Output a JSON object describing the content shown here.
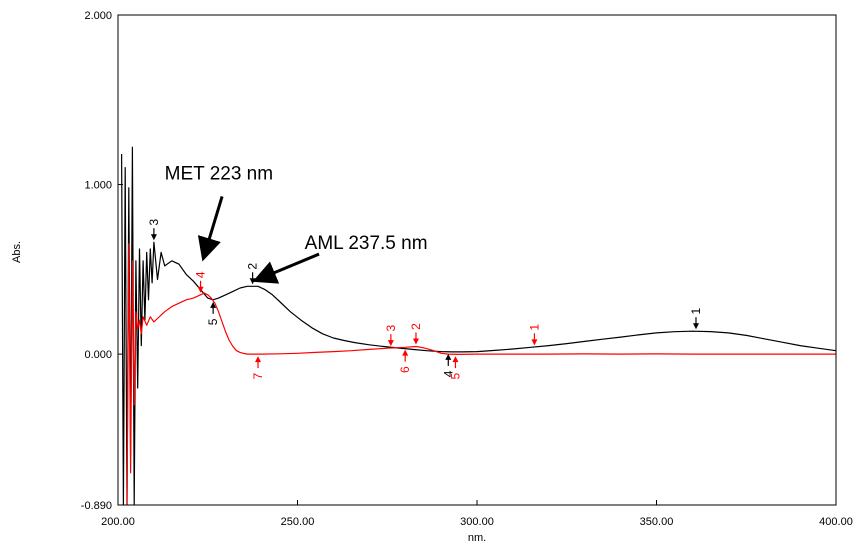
{
  "chart_data": {
    "type": "line",
    "xlabel": "nm.",
    "ylabel": "Abs.",
    "xlim": [
      200,
      400
    ],
    "ylim": [
      -0.89,
      2.0
    ],
    "x_ticks": [
      "200.00",
      "250.00",
      "300.00",
      "350.00",
      "400.00"
    ],
    "y_ticks": [
      {
        "value": 2.0,
        "label": "2.000"
      },
      {
        "value": 1.0,
        "label": "1.000"
      },
      {
        "value": 0.0,
        "label": "0.000"
      },
      {
        "value": -0.89,
        "label": "-0.890"
      }
    ],
    "grid": false,
    "legend": "none",
    "series": [
      {
        "color": "#000000",
        "x": [
          201,
          201.5,
          202,
          202.5,
          203,
          203.5,
          204,
          204.5,
          205,
          205.5,
          206,
          206.5,
          207,
          207.5,
          208,
          208.5,
          209,
          209.5,
          210,
          211,
          212,
          213,
          215,
          217,
          219,
          221,
          223,
          225,
          226.5,
          228,
          230,
          232,
          234,
          236,
          237.5,
          239,
          241,
          243,
          245,
          248,
          251,
          254,
          257,
          260,
          263,
          266,
          270,
          274,
          278,
          282,
          286,
          290,
          293,
          296,
          300,
          305,
          310,
          315,
          320,
          325,
          330,
          335,
          340,
          345,
          350,
          355,
          360,
          365,
          370,
          375,
          380,
          385,
          390,
          395,
          400
        ],
        "y": [
          1.18,
          -0.89,
          1.1,
          -0.89,
          0.98,
          -0.6,
          1.22,
          -0.89,
          0.55,
          -0.2,
          0.62,
          0.05,
          0.55,
          0.2,
          0.6,
          0.32,
          0.62,
          0.42,
          0.66,
          0.44,
          0.6,
          0.52,
          0.55,
          0.53,
          0.47,
          0.43,
          0.38,
          0.33,
          0.32,
          0.33,
          0.35,
          0.37,
          0.39,
          0.4,
          0.4,
          0.4,
          0.38,
          0.35,
          0.31,
          0.25,
          0.2,
          0.155,
          0.12,
          0.095,
          0.08,
          0.068,
          0.055,
          0.045,
          0.036,
          0.028,
          0.02,
          0.015,
          0.013,
          0.013,
          0.015,
          0.022,
          0.03,
          0.04,
          0.05,
          0.062,
          0.075,
          0.088,
          0.1,
          0.113,
          0.125,
          0.132,
          0.135,
          0.133,
          0.125,
          0.11,
          0.09,
          0.07,
          0.05,
          0.035,
          0.02
        ]
      },
      {
        "color": "#ff0000",
        "x": [
          202.5,
          203,
          203.5,
          204,
          204.5,
          205,
          205.5,
          206,
          206.5,
          207,
          208,
          209,
          210,
          211,
          212,
          213,
          215,
          217,
          219,
          221,
          223,
          224,
          225,
          226,
          227,
          228,
          229,
          230,
          231,
          232,
          233,
          234,
          235,
          236,
          238,
          240,
          245,
          250,
          255,
          260,
          265,
          270,
          275,
          280,
          283,
          285,
          288,
          290,
          292,
          295,
          300,
          310,
          320,
          330,
          340,
          350,
          360,
          370,
          380,
          390,
          400
        ],
        "y": [
          -0.89,
          0.65,
          -0.7,
          0.55,
          -0.3,
          0.25,
          0.15,
          0.2,
          0.12,
          0.22,
          0.17,
          0.22,
          0.19,
          0.21,
          0.23,
          0.25,
          0.28,
          0.3,
          0.32,
          0.33,
          0.35,
          0.36,
          0.35,
          0.33,
          0.3,
          0.25,
          0.19,
          0.13,
          0.08,
          0.045,
          0.02,
          0.01,
          0.004,
          0.0,
          0.0,
          0.0,
          0.002,
          0.005,
          0.01,
          0.015,
          0.02,
          0.028,
          0.035,
          0.04,
          0.045,
          0.038,
          0.02,
          0.005,
          0.0,
          -0.002,
          0.0,
          0.0,
          0.0,
          0.001,
          0.0,
          0.001,
          0.0,
          0.0,
          0.0,
          0.0,
          0.0
        ]
      }
    ],
    "peak_labels": [
      {
        "label": "1",
        "x": 361,
        "y": 0.135,
        "color": "#000000",
        "dir": "above"
      },
      {
        "label": "2",
        "x": 237.5,
        "y": 0.4,
        "color": "#000000",
        "dir": "above"
      },
      {
        "label": "3",
        "x": 210,
        "y": 0.66,
        "color": "#000000",
        "dir": "above"
      },
      {
        "label": "4",
        "x": 292,
        "y": 0.013,
        "color": "#000000",
        "dir": "below"
      },
      {
        "label": "5",
        "x": 226.5,
        "y": 0.32,
        "color": "#000000",
        "dir": "below"
      },
      {
        "label": "1",
        "x": 316,
        "y": 0.04,
        "color": "#ff0000",
        "dir": "above"
      },
      {
        "label": "2",
        "x": 283,
        "y": 0.045,
        "color": "#ff0000",
        "dir": "above"
      },
      {
        "label": "3",
        "x": 276,
        "y": 0.035,
        "color": "#ff0000",
        "dir": "above"
      },
      {
        "label": "4",
        "x": 223,
        "y": 0.35,
        "color": "#ff0000",
        "dir": "above"
      },
      {
        "label": "5",
        "x": 294,
        "y": 0.0,
        "color": "#ff0000",
        "dir": "below"
      },
      {
        "label": "6",
        "x": 280,
        "y": 0.038,
        "color": "#ff0000",
        "dir": "below"
      },
      {
        "label": "7",
        "x": 239,
        "y": 0.0,
        "color": "#ff0000",
        "dir": "below"
      }
    ],
    "annotations": [
      {
        "text": "MET 223 nm",
        "text_x": 213,
        "text_y": 1.03,
        "arrow_from": [
          229,
          0.93
        ],
        "arrow_to": [
          224,
          0.58
        ]
      },
      {
        "text": "AML 237.5 nm",
        "text_x": 252,
        "text_y": 0.62,
        "arrow_from": [
          256,
          0.59
        ],
        "arrow_to": [
          239,
          0.44
        ]
      }
    ]
  }
}
